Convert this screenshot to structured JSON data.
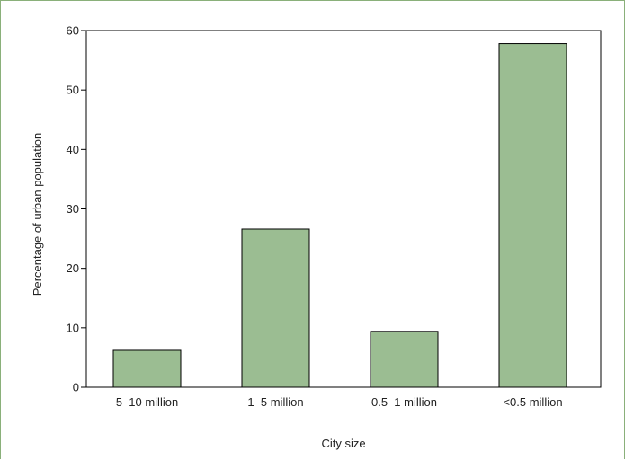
{
  "chart_data": {
    "type": "bar",
    "categories": [
      "5–10 million",
      "1–5 million",
      "0.5–1 million",
      "<0.5 million"
    ],
    "values": [
      6.2,
      26.6,
      9.4,
      57.8
    ],
    "title": "",
    "xlabel": "City size",
    "ylabel": "Percentage of urban population",
    "ylim": [
      0,
      60
    ],
    "yticks": [
      0,
      10,
      20,
      30,
      40,
      50,
      60
    ],
    "grid": false,
    "bar_color": "#9bbd92",
    "border_color": "#8ab07a"
  }
}
